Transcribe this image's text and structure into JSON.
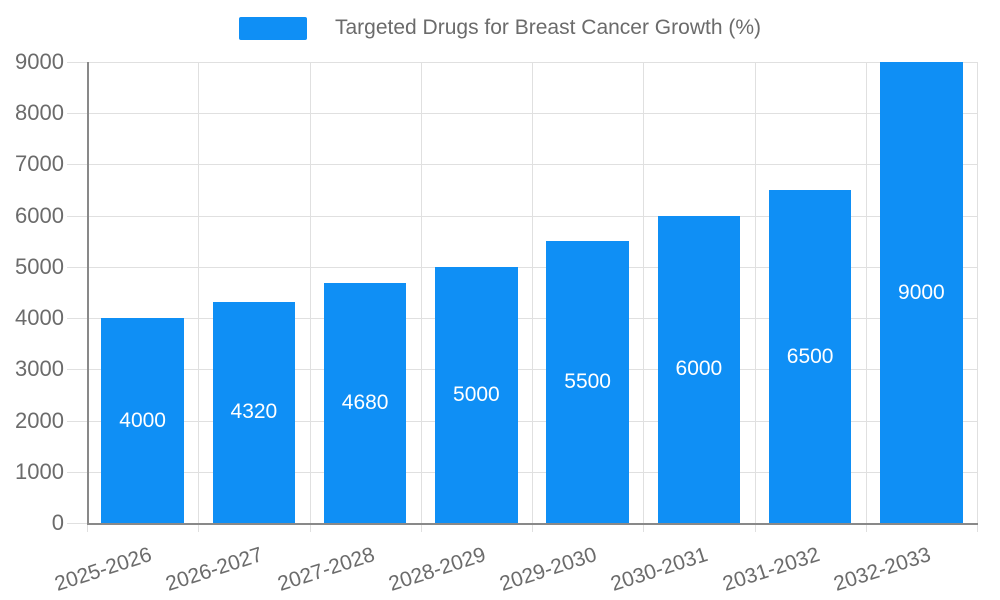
{
  "chart_data": {
    "type": "bar",
    "title": "Targeted Drugs for Breast Cancer Growth (%)",
    "legend": {
      "position": "top-center",
      "items": [
        {
          "label": "Targeted Drugs for Breast Cancer Growth (%)",
          "swatch_color": "#0f8ff5"
        }
      ]
    },
    "categories": [
      "2025-2026",
      "2026-2027",
      "2027-2028",
      "2028-2029",
      "2029-2030",
      "2030-2031",
      "2031-2032",
      "2032-2033"
    ],
    "values": [
      4000,
      4320,
      4680,
      5000,
      5500,
      6000,
      6500,
      9000
    ],
    "bar_value_labels": [
      "4000",
      "4320",
      "4680",
      "5000",
      "5500",
      "6000",
      "6500",
      "9000"
    ],
    "xlabel": "",
    "ylabel": "",
    "ylim": [
      0,
      9000
    ],
    "y_ticks": [
      0,
      1000,
      2000,
      3000,
      4000,
      5000,
      6000,
      7000,
      8000,
      9000
    ],
    "grid": true,
    "x_label_rotation_deg": -18,
    "colors": {
      "bar": "#0f8ff5",
      "bar_label_text": "#ffffff",
      "axis_text": "#6b6b6b",
      "axis_line": "#898989",
      "grid_line": "#e0e0e0",
      "background": "#ffffff"
    }
  }
}
